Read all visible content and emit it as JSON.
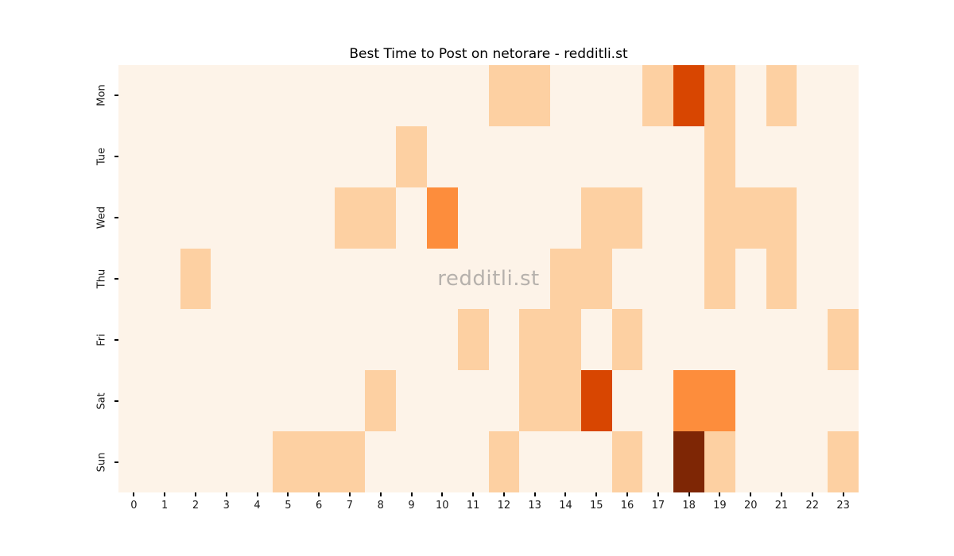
{
  "watermark": {
    "text": "redditli.st"
  },
  "chart_data": {
    "type": "heatmap",
    "title": "Best Time to Post on netorare - redditli.st",
    "xlabel": "",
    "ylabel": "",
    "x_tick_labels": [
      "0",
      "1",
      "2",
      "3",
      "4",
      "5",
      "6",
      "7",
      "8",
      "9",
      "10",
      "11",
      "12",
      "13",
      "14",
      "15",
      "16",
      "17",
      "18",
      "19",
      "20",
      "21",
      "22",
      "23"
    ],
    "y_tick_labels": [
      "Mon",
      "Tue",
      "Wed",
      "Thu",
      "Fri",
      "Sat",
      "Sun"
    ],
    "value_range": [
      0,
      4
    ],
    "colormap": "Oranges",
    "legend": "none",
    "grid": "off",
    "palette": [
      "#fdf3e8",
      "#fdd0a2",
      "#fd8d3c",
      "#d84601",
      "#7e2605"
    ],
    "values": [
      [
        0,
        0,
        0,
        0,
        0,
        0,
        0,
        0,
        0,
        0,
        0,
        0,
        1,
        1,
        0,
        0,
        0,
        1,
        3,
        1,
        0,
        1,
        0,
        0
      ],
      [
        0,
        0,
        0,
        0,
        0,
        0,
        0,
        0,
        0,
        1,
        0,
        0,
        0,
        0,
        0,
        0,
        0,
        0,
        0,
        1,
        0,
        0,
        0,
        0
      ],
      [
        0,
        0,
        0,
        0,
        0,
        0,
        0,
        1,
        1,
        0,
        2,
        0,
        0,
        0,
        0,
        1,
        1,
        0,
        0,
        1,
        1,
        1,
        0,
        0
      ],
      [
        0,
        0,
        1,
        0,
        0,
        0,
        0,
        0,
        0,
        0,
        0,
        0,
        0,
        0,
        1,
        1,
        0,
        0,
        0,
        1,
        0,
        1,
        0,
        0
      ],
      [
        0,
        0,
        0,
        0,
        0,
        0,
        0,
        0,
        0,
        0,
        0,
        1,
        0,
        1,
        1,
        0,
        1,
        0,
        0,
        0,
        0,
        0,
        0,
        1
      ],
      [
        0,
        0,
        0,
        0,
        0,
        0,
        0,
        0,
        1,
        0,
        0,
        0,
        0,
        1,
        1,
        3,
        0,
        0,
        2,
        2,
        0,
        0,
        0,
        0
      ],
      [
        0,
        0,
        0,
        0,
        0,
        1,
        1,
        1,
        0,
        0,
        0,
        0,
        1,
        0,
        0,
        0,
        1,
        0,
        4,
        1,
        0,
        0,
        0,
        1
      ]
    ]
  }
}
